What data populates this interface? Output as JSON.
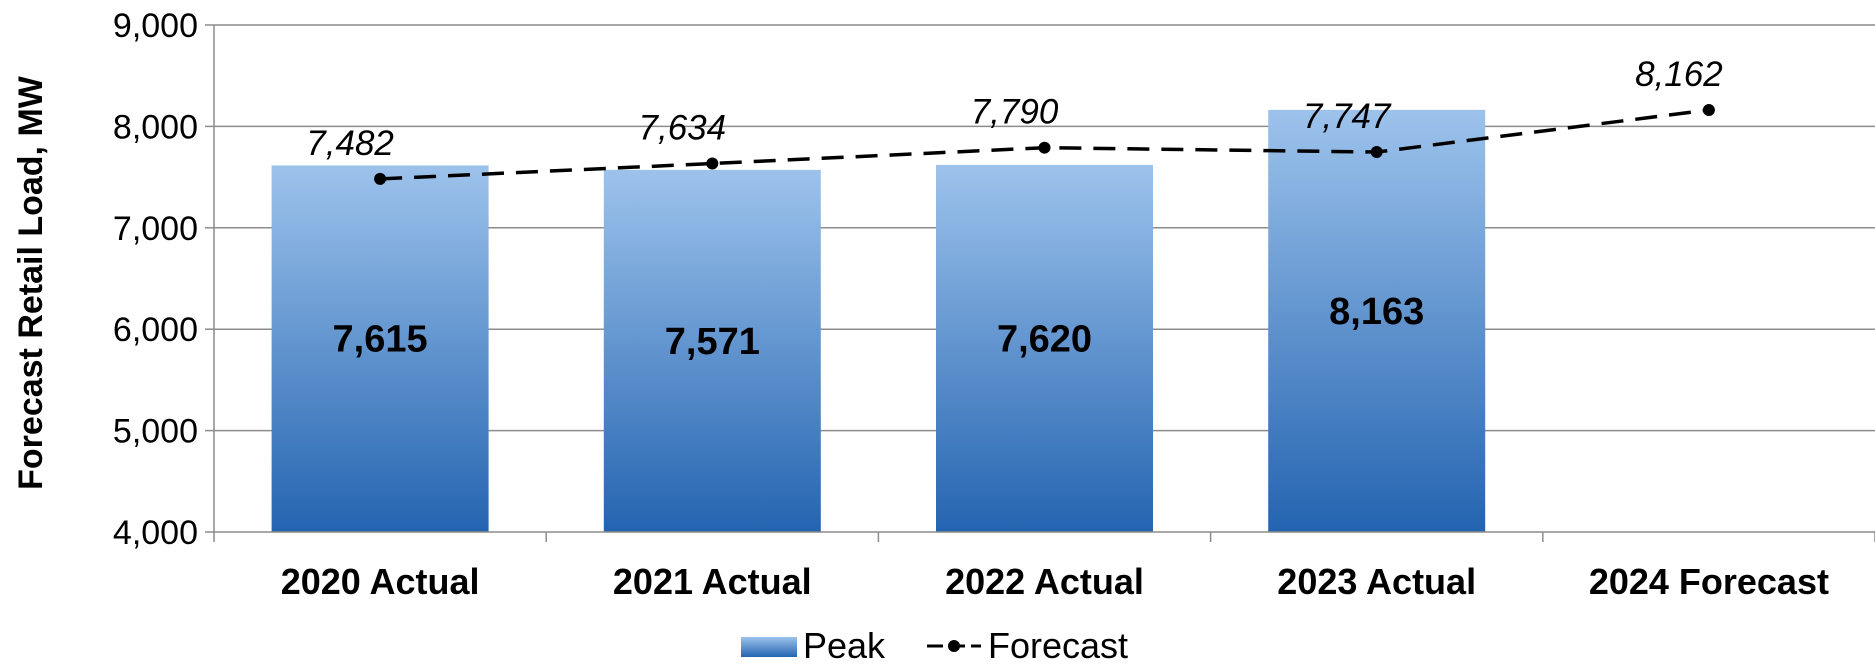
{
  "chart_data": {
    "type": "bar",
    "title": "",
    "ylabel": "Forecast Retail Load, MW",
    "xlabel": "",
    "ylim": [
      4000,
      9000
    ],
    "yticks": [
      4000,
      5000,
      6000,
      7000,
      8000,
      9000
    ],
    "ytick_labels": [
      "4,000",
      "5,000",
      "6,000",
      "7,000",
      "8,000",
      "9,000"
    ],
    "categories": [
      "2020 Actual",
      "2021 Actual",
      "2022 Actual",
      "2023 Actual",
      "2024 Forecast"
    ],
    "grid": true,
    "legend_position": "bottom",
    "series": [
      {
        "name": "Peak",
        "type": "bar",
        "values": [
          7615,
          7571,
          7620,
          8163,
          null
        ],
        "labels": [
          "7,615",
          "7,571",
          "7,620",
          "8,163",
          ""
        ],
        "color_top": "#9dc3ec",
        "color_bottom": "#2464b0"
      },
      {
        "name": "Forecast",
        "type": "line",
        "style": "dashed",
        "values": [
          7482,
          7634,
          7790,
          7747,
          8162
        ],
        "labels": [
          "7,482",
          "7,634",
          "7,790",
          "7,747",
          "8,162"
        ],
        "color": "#000000"
      }
    ]
  }
}
